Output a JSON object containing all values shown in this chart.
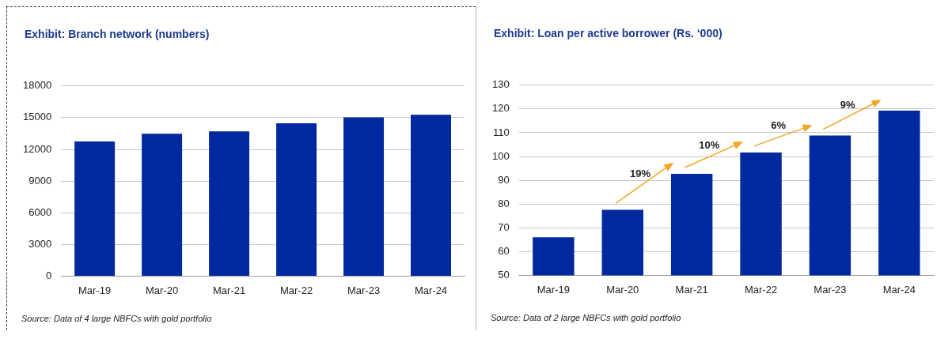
{
  "chart_data": [
    {
      "type": "bar",
      "title": "Exhibit: Branch network (numbers)",
      "categories": [
        "Mar-19",
        "Mar-20",
        "Mar-21",
        "Mar-22",
        "Mar-23",
        "Mar-24"
      ],
      "values": [
        12750,
        13470,
        13700,
        14460,
        15030,
        15270
      ],
      "color": "#00299f",
      "ylim": [
        0,
        18000
      ],
      "yticks": [
        0,
        3000,
        6000,
        9000,
        12000,
        15000,
        18000
      ],
      "grid": "y",
      "annotations": [
        "Source: Data of 4 large NBFCs with gold portfolio"
      ]
    },
    {
      "type": "bar",
      "title": "Exhibit: Loan per active borrower (Rs. ‘000)",
      "categories": [
        "Mar-19",
        "Mar-20",
        "Mar-21",
        "Mar-22",
        "Mar-23",
        "Mar-24"
      ],
      "values": [
        66,
        77.6,
        92.7,
        101.7,
        108.8,
        119.3
      ],
      "color": "#00299f",
      "ylim": [
        50,
        130
      ],
      "yticks": [
        50,
        60,
        70,
        80,
        90,
        100,
        110,
        120,
        130
      ],
      "grid": "y",
      "annotations": [
        "Source: Data of 2 large NBFCs with gold portfolio",
        "19%",
        "10%",
        "6%",
        "9%"
      ]
    }
  ]
}
